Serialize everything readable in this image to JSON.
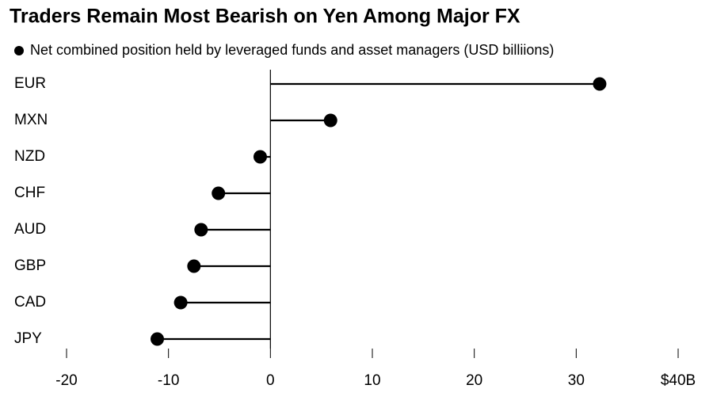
{
  "chart_data": {
    "type": "lollipop",
    "title": "Traders Remain Most Bearish on Yen Among Major FX",
    "categories": [
      "EUR",
      "MXN",
      "NZD",
      "CHF",
      "AUD",
      "GBP",
      "CAD",
      "JPY"
    ],
    "series": [
      {
        "name": "Net combined position held by leveraged funds and asset managers (USD billiions)",
        "color": "#000000",
        "values": [
          32.3,
          5.9,
          -1.0,
          -5.1,
          -6.8,
          -7.5,
          -8.8,
          -11.1
        ]
      }
    ],
    "xlim": [
      -20,
      40
    ],
    "xticks": [
      -20,
      -10,
      0,
      10,
      20,
      30,
      {
        "value": 40,
        "label": "$40B"
      }
    ]
  }
}
